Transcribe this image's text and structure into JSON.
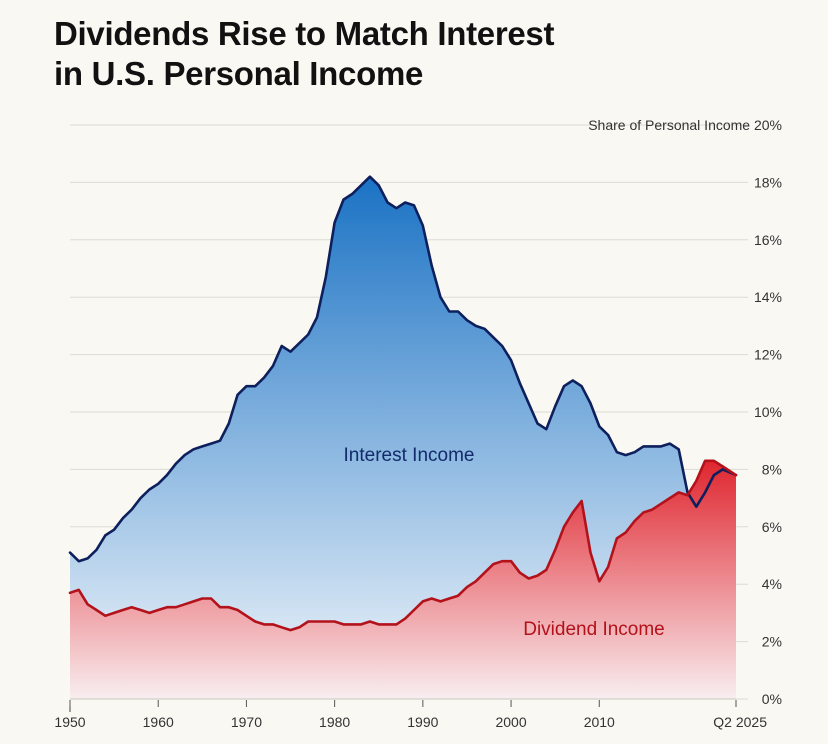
{
  "title_line1": "Dividends Rise to Match Interest",
  "title_line2": "in U.S. Personal Income",
  "colors": {
    "background": "#faf8f3",
    "interest_line": "#0d1f5c",
    "interest_fill_top": "#1a72c4",
    "interest_fill_bottom": "#f3f7fb",
    "dividend_line": "#b3121b",
    "dividend_fill_top": "#e0262f",
    "dividend_fill_bottom": "#f8eef0",
    "interest_label": "#132b6b",
    "dividend_label": "#b3121b",
    "grid": "#dcdad4"
  },
  "chart_data": {
    "type": "area",
    "title": "Dividends Rise to Match Interest in U.S. Personal Income",
    "ylabel": "Share of Personal Income",
    "ylim": [
      0,
      20
    ],
    "yticks": [
      0,
      2,
      4,
      6,
      8,
      10,
      12,
      14,
      16,
      18,
      20
    ],
    "ytick_labels": [
      "0%",
      "2%",
      "4%",
      "6%",
      "8%",
      "10%",
      "12%",
      "14%",
      "16%",
      "18%",
      "Share of Personal Income 20%"
    ],
    "xlim": [
      1950,
      2025.5
    ],
    "xticks": [
      1950,
      1960,
      1970,
      1980,
      1990,
      2000,
      2010,
      2025.5
    ],
    "xtick_labels": [
      "1950",
      "1960",
      "1970",
      "1980",
      "1990",
      "2000",
      "2010",
      "Q2 2025"
    ],
    "grid": "horizontal",
    "series": [
      {
        "name": "Interest Income",
        "x": [
          1950,
          1951,
          1952,
          1953,
          1954,
          1955,
          1956,
          1957,
          1958,
          1959,
          1960,
          1961,
          1962,
          1963,
          1964,
          1965,
          1966,
          1967,
          1968,
          1969,
          1970,
          1971,
          1972,
          1973,
          1974,
          1975,
          1976,
          1977,
          1978,
          1979,
          1980,
          1981,
          1982,
          1983,
          1984,
          1985,
          1986,
          1987,
          1988,
          1989,
          1990,
          1991,
          1992,
          1993,
          1994,
          1995,
          1996,
          1997,
          1998,
          1999,
          2000,
          2001,
          2002,
          2003,
          2004,
          2005,
          2006,
          2007,
          2008,
          2009,
          2010,
          2011,
          2012,
          2013,
          2014,
          2015,
          2016,
          2017,
          2018,
          2019,
          2020,
          2021,
          2022,
          2023,
          2024,
          2025.5
        ],
        "values": [
          5.1,
          4.8,
          4.9,
          5.2,
          5.7,
          5.9,
          6.3,
          6.6,
          7.0,
          7.3,
          7.5,
          7.8,
          8.2,
          8.5,
          8.7,
          8.8,
          8.9,
          9.0,
          9.6,
          10.6,
          10.9,
          10.9,
          11.2,
          11.6,
          12.3,
          12.1,
          12.4,
          12.7,
          13.3,
          14.7,
          16.6,
          17.4,
          17.6,
          17.9,
          18.2,
          17.9,
          17.3,
          17.1,
          17.3,
          17.2,
          16.5,
          15.1,
          14.0,
          13.5,
          13.5,
          13.2,
          13.0,
          12.9,
          12.6,
          12.3,
          11.8,
          11.0,
          10.3,
          9.6,
          9.4,
          10.2,
          10.9,
          11.1,
          10.9,
          10.3,
          9.5,
          9.2,
          8.6,
          8.5,
          8.6,
          8.8,
          8.8,
          8.8,
          8.9,
          8.7,
          7.2,
          6.7,
          7.2,
          7.8,
          8.0,
          7.8
        ]
      },
      {
        "name": "Dividend Income",
        "x": [
          1950,
          1951,
          1952,
          1953,
          1954,
          1955,
          1956,
          1957,
          1958,
          1959,
          1960,
          1961,
          1962,
          1963,
          1964,
          1965,
          1966,
          1967,
          1968,
          1969,
          1970,
          1971,
          1972,
          1973,
          1974,
          1975,
          1976,
          1977,
          1978,
          1979,
          1980,
          1981,
          1982,
          1983,
          1984,
          1985,
          1986,
          1987,
          1988,
          1989,
          1990,
          1991,
          1992,
          1993,
          1994,
          1995,
          1996,
          1997,
          1998,
          1999,
          2000,
          2001,
          2002,
          2003,
          2004,
          2005,
          2006,
          2007,
          2008,
          2009,
          2010,
          2011,
          2012,
          2013,
          2014,
          2015,
          2016,
          2017,
          2018,
          2019,
          2020,
          2021,
          2022,
          2023,
          2024,
          2025.5
        ],
        "values": [
          3.7,
          3.8,
          3.3,
          3.1,
          2.9,
          3.0,
          3.1,
          3.2,
          3.1,
          3.0,
          3.1,
          3.2,
          3.2,
          3.3,
          3.4,
          3.5,
          3.5,
          3.2,
          3.2,
          3.1,
          2.9,
          2.7,
          2.6,
          2.6,
          2.5,
          2.4,
          2.5,
          2.7,
          2.7,
          2.7,
          2.7,
          2.6,
          2.6,
          2.6,
          2.7,
          2.6,
          2.6,
          2.6,
          2.8,
          3.1,
          3.4,
          3.5,
          3.4,
          3.5,
          3.6,
          3.9,
          4.1,
          4.4,
          4.7,
          4.8,
          4.8,
          4.4,
          4.2,
          4.3,
          4.5,
          5.2,
          6.0,
          6.5,
          6.9,
          5.1,
          4.1,
          4.6,
          5.6,
          5.8,
          6.2,
          6.5,
          6.6,
          6.8,
          7.0,
          7.2,
          7.1,
          7.6,
          8.3,
          8.3,
          8.1,
          7.8
        ]
      }
    ],
    "annotations": [
      "Interest Income",
      "Dividend Income"
    ]
  }
}
